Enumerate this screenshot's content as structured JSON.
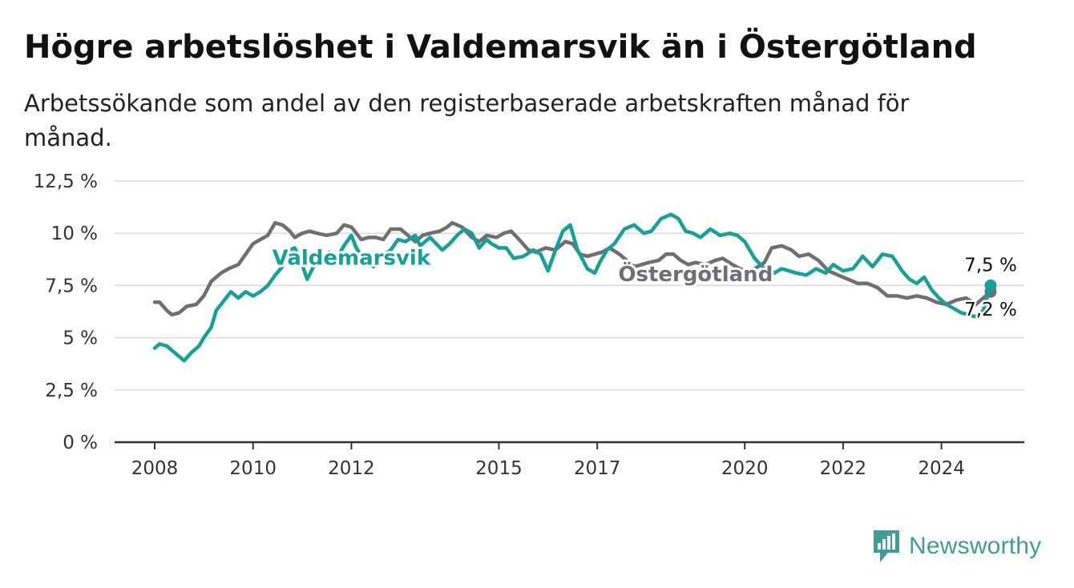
{
  "title": "Högre arbetslöshet i Valdemarsvik än i Östergötland",
  "subtitle": "Arbetssökande som andel av den registerbaserade arbetskraften månad för månad.",
  "brand": {
    "name": "Newsworthy",
    "icon": "newsworthy-logo-icon",
    "color": "#3f9c96"
  },
  "chart_data": {
    "type": "line",
    "title": "Högre arbetslöshet i Valdemarsvik än i Östergötland",
    "subtitle": "Arbetssökande som andel av den registerbaserade arbetskraften månad för månad.",
    "ylim": [
      0,
      12.5
    ],
    "yticks": [
      0,
      2.5,
      5,
      7.5,
      10,
      12.5
    ],
    "ytick_labels": [
      "0 %",
      "2,5 %",
      "5 %",
      "7,5 %",
      "10 %",
      "12,5 %"
    ],
    "xlim": [
      2007.2,
      2025.0
    ],
    "xticks": [
      2008,
      2010,
      2012,
      2015,
      2017,
      2020,
      2022,
      2024
    ],
    "xtick_labels": [
      "2008",
      "2010",
      "2012",
      "2015",
      "2017",
      "2020",
      "2022",
      "2024"
    ],
    "grid": true,
    "series": [
      {
        "name": "Östergötland",
        "color": "#6f6e72",
        "label_at": [
          2019.0,
          7.7
        ],
        "points": [
          [
            2008.0,
            6.7
          ],
          [
            2008.1,
            6.7
          ],
          [
            2008.25,
            6.3
          ],
          [
            2008.35,
            6.1
          ],
          [
            2008.5,
            6.2
          ],
          [
            2008.65,
            6.5
          ],
          [
            2008.85,
            6.6
          ],
          [
            2009.0,
            7.0
          ],
          [
            2009.15,
            7.7
          ],
          [
            2009.35,
            8.1
          ],
          [
            2009.5,
            8.3
          ],
          [
            2009.7,
            8.5
          ],
          [
            2009.85,
            9.0
          ],
          [
            2010.0,
            9.5
          ],
          [
            2010.15,
            9.7
          ],
          [
            2010.3,
            9.9
          ],
          [
            2010.45,
            10.5
          ],
          [
            2010.6,
            10.4
          ],
          [
            2010.75,
            10.1
          ],
          [
            2010.85,
            9.8
          ],
          [
            2011.0,
            10.0
          ],
          [
            2011.15,
            10.1
          ],
          [
            2011.3,
            10.0
          ],
          [
            2011.5,
            9.9
          ],
          [
            2011.7,
            10.0
          ],
          [
            2011.85,
            10.4
          ],
          [
            2012.0,
            10.3
          ],
          [
            2012.2,
            9.7
          ],
          [
            2012.35,
            9.8
          ],
          [
            2012.5,
            9.8
          ],
          [
            2012.65,
            9.7
          ],
          [
            2012.8,
            10.2
          ],
          [
            2013.0,
            10.2
          ],
          [
            2013.15,
            9.9
          ],
          [
            2013.3,
            9.6
          ],
          [
            2013.45,
            9.9
          ],
          [
            2013.6,
            10.0
          ],
          [
            2013.8,
            10.1
          ],
          [
            2013.95,
            10.3
          ],
          [
            2014.05,
            10.5
          ],
          [
            2014.25,
            10.3
          ],
          [
            2014.45,
            9.8
          ],
          [
            2014.6,
            9.6
          ],
          [
            2014.75,
            9.9
          ],
          [
            2014.95,
            9.8
          ],
          [
            2015.1,
            10.0
          ],
          [
            2015.25,
            10.1
          ],
          [
            2015.45,
            9.6
          ],
          [
            2015.6,
            9.2
          ],
          [
            2015.75,
            9.1
          ],
          [
            2015.95,
            9.3
          ],
          [
            2016.15,
            9.2
          ],
          [
            2016.35,
            9.6
          ],
          [
            2016.5,
            9.5
          ],
          [
            2016.65,
            9.0
          ],
          [
            2016.8,
            8.9
          ],
          [
            2016.95,
            9.0
          ],
          [
            2017.1,
            9.1
          ],
          [
            2017.25,
            9.3
          ],
          [
            2017.45,
            9.0
          ],
          [
            2017.6,
            8.7
          ],
          [
            2017.75,
            8.4
          ],
          [
            2017.9,
            8.5
          ],
          [
            2018.05,
            8.6
          ],
          [
            2018.25,
            8.7
          ],
          [
            2018.4,
            9.0
          ],
          [
            2018.55,
            9.0
          ],
          [
            2018.7,
            8.7
          ],
          [
            2018.85,
            8.5
          ],
          [
            2019.0,
            8.6
          ],
          [
            2019.2,
            8.5
          ],
          [
            2019.4,
            8.7
          ],
          [
            2019.55,
            8.8
          ],
          [
            2019.75,
            8.5
          ],
          [
            2019.9,
            8.3
          ],
          [
            2020.05,
            8.2
          ],
          [
            2020.2,
            8.3
          ],
          [
            2020.4,
            8.6
          ],
          [
            2020.55,
            9.3
          ],
          [
            2020.75,
            9.4
          ],
          [
            2020.95,
            9.2
          ],
          [
            2021.1,
            8.9
          ],
          [
            2021.3,
            9.0
          ],
          [
            2021.5,
            8.7
          ],
          [
            2021.7,
            8.2
          ],
          [
            2021.9,
            8.0
          ],
          [
            2022.1,
            7.8
          ],
          [
            2022.3,
            7.6
          ],
          [
            2022.5,
            7.6
          ],
          [
            2022.7,
            7.4
          ],
          [
            2022.9,
            7.0
          ],
          [
            2023.1,
            7.0
          ],
          [
            2023.3,
            6.9
          ],
          [
            2023.5,
            7.0
          ],
          [
            2023.7,
            6.9
          ],
          [
            2023.9,
            6.7
          ],
          [
            2024.1,
            6.6
          ],
          [
            2024.3,
            6.8
          ],
          [
            2024.5,
            6.9
          ],
          [
            2024.7,
            6.6
          ],
          [
            2024.9,
            7.0
          ],
          [
            2025.0,
            7.2
          ]
        ],
        "last_label": "7,2 %"
      },
      {
        "name": "Valdemarsvik",
        "color": "#14a197",
        "label_at": [
          2012.0,
          8.5
        ],
        "points": [
          [
            2008.0,
            4.5
          ],
          [
            2008.1,
            4.7
          ],
          [
            2008.25,
            4.6
          ],
          [
            2008.4,
            4.3
          ],
          [
            2008.5,
            4.1
          ],
          [
            2008.6,
            3.9
          ],
          [
            2008.75,
            4.3
          ],
          [
            2008.9,
            4.6
          ],
          [
            2009.0,
            5.0
          ],
          [
            2009.15,
            5.5
          ],
          [
            2009.25,
            6.3
          ],
          [
            2009.45,
            6.9
          ],
          [
            2009.55,
            7.2
          ],
          [
            2009.7,
            6.9
          ],
          [
            2009.85,
            7.2
          ],
          [
            2010.0,
            7.0
          ],
          [
            2010.15,
            7.2
          ],
          [
            2010.3,
            7.5
          ],
          [
            2010.45,
            8.0
          ],
          [
            2010.6,
            8.4
          ],
          [
            2010.75,
            9.2
          ],
          [
            2010.85,
            9.3
          ],
          [
            2011.0,
            8.5
          ],
          [
            2011.1,
            7.8
          ],
          [
            2011.25,
            8.5
          ],
          [
            2011.4,
            8.8
          ],
          [
            2011.55,
            9.1
          ],
          [
            2011.7,
            8.8
          ],
          [
            2011.85,
            9.4
          ],
          [
            2012.0,
            9.9
          ],
          [
            2012.1,
            9.3
          ],
          [
            2012.3,
            8.6
          ],
          [
            2012.45,
            8.4
          ],
          [
            2012.6,
            8.9
          ],
          [
            2012.8,
            9.2
          ],
          [
            2012.95,
            9.7
          ],
          [
            2013.1,
            9.6
          ],
          [
            2013.3,
            9.9
          ],
          [
            2013.4,
            9.4
          ],
          [
            2013.6,
            9.8
          ],
          [
            2013.85,
            9.2
          ],
          [
            2014.0,
            9.5
          ],
          [
            2014.15,
            9.9
          ],
          [
            2014.3,
            10.2
          ],
          [
            2014.45,
            10.0
          ],
          [
            2014.6,
            9.3
          ],
          [
            2014.75,
            9.7
          ],
          [
            2014.85,
            9.5
          ],
          [
            2015.0,
            9.3
          ],
          [
            2015.15,
            9.3
          ],
          [
            2015.3,
            8.8
          ],
          [
            2015.5,
            8.9
          ],
          [
            2015.7,
            9.2
          ],
          [
            2015.85,
            9.0
          ],
          [
            2016.0,
            8.2
          ],
          [
            2016.15,
            9.2
          ],
          [
            2016.3,
            10.1
          ],
          [
            2016.45,
            10.4
          ],
          [
            2016.6,
            9.2
          ],
          [
            2016.8,
            8.3
          ],
          [
            2016.95,
            8.1
          ],
          [
            2017.05,
            8.6
          ],
          [
            2017.2,
            9.2
          ],
          [
            2017.35,
            9.5
          ],
          [
            2017.55,
            10.2
          ],
          [
            2017.75,
            10.4
          ],
          [
            2017.95,
            10.0
          ],
          [
            2018.1,
            10.1
          ],
          [
            2018.3,
            10.7
          ],
          [
            2018.5,
            10.9
          ],
          [
            2018.65,
            10.7
          ],
          [
            2018.8,
            10.1
          ],
          [
            2018.95,
            10.0
          ],
          [
            2019.1,
            9.8
          ],
          [
            2019.3,
            10.2
          ],
          [
            2019.5,
            9.9
          ],
          [
            2019.7,
            10.0
          ],
          [
            2019.85,
            9.9
          ],
          [
            2020.0,
            9.6
          ],
          [
            2020.2,
            8.8
          ],
          [
            2020.4,
            8.3
          ],
          [
            2020.6,
            8.1
          ],
          [
            2020.75,
            8.3
          ],
          [
            2020.9,
            8.2
          ],
          [
            2021.05,
            8.1
          ],
          [
            2021.25,
            8.0
          ],
          [
            2021.45,
            8.3
          ],
          [
            2021.65,
            8.1
          ],
          [
            2021.8,
            8.5
          ],
          [
            2022.0,
            8.2
          ],
          [
            2022.2,
            8.3
          ],
          [
            2022.4,
            8.9
          ],
          [
            2022.6,
            8.4
          ],
          [
            2022.8,
            9.0
          ],
          [
            2023.0,
            8.9
          ],
          [
            2023.2,
            8.2
          ],
          [
            2023.35,
            7.8
          ],
          [
            2023.5,
            7.6
          ],
          [
            2023.65,
            7.9
          ],
          [
            2023.8,
            7.3
          ],
          [
            2023.95,
            6.9
          ],
          [
            2024.1,
            6.6
          ],
          [
            2024.25,
            6.4
          ],
          [
            2024.4,
            6.2
          ],
          [
            2024.55,
            6.1
          ],
          [
            2024.7,
            6.0
          ],
          [
            2024.85,
            6.3
          ],
          [
            2025.0,
            7.5
          ]
        ],
        "last_label": "7,5 %"
      }
    ]
  }
}
